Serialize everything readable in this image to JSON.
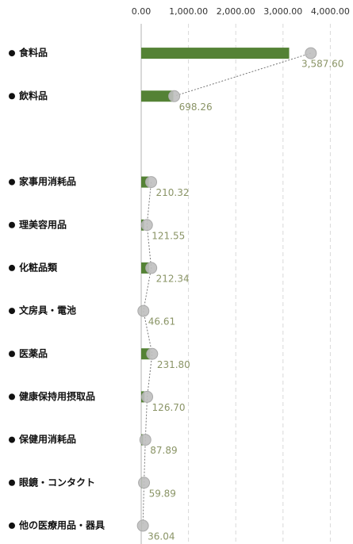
{
  "chart_data": {
    "type": "bar",
    "categories": [
      "食料品",
      "飲料品",
      null,
      "家事用消耗品",
      "理美容用品",
      "化粧品類",
      "文房具・電池",
      "医薬品",
      "健康保持用摂取品",
      "保健用消耗品",
      "眼鏡・コンタクト",
      "他の医療用品・器具"
    ],
    "series": [
      {
        "type": "bar",
        "color": "#548235",
        "values": [
          3130,
          680,
          null,
          160,
          60,
          170,
          10,
          190,
          70,
          40,
          20,
          10
        ]
      },
      {
        "type": "line",
        "color": "#bfbfbf",
        "values": [
          3587.6,
          698.26,
          null,
          210.32,
          121.55,
          212.34,
          46.61,
          231.8,
          126.7,
          87.89,
          59.89,
          36.04
        ],
        "value_labels": [
          "3,587.60",
          "698.26",
          null,
          "210.32",
          "121.55",
          "212.34",
          "46.61",
          "231.80",
          "126.70",
          "87.89",
          "59.89",
          "36.04"
        ]
      }
    ],
    "xlim": [
      0,
      4480
    ],
    "xticks": [
      {
        "value": 0,
        "label": "0.00"
      },
      {
        "value": 1000,
        "label": "1,000.00"
      },
      {
        "value": 2000,
        "label": "2,000.00"
      },
      {
        "value": 3000,
        "label": "3,000.00"
      },
      {
        "value": 4000,
        "label": "4,000.00"
      }
    ],
    "grid": true
  }
}
